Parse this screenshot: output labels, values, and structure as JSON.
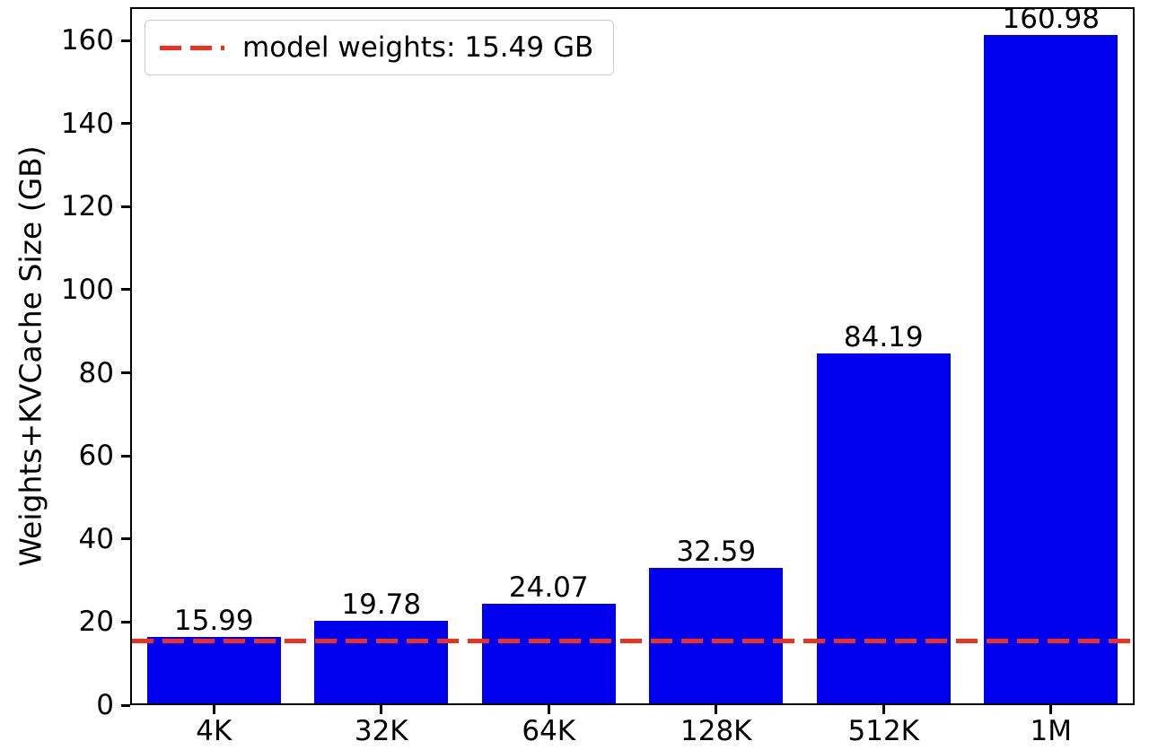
{
  "chart_data": {
    "type": "bar",
    "title": "",
    "categories": [
      "4K",
      "32K",
      "64K",
      "128K",
      "512K",
      "1M"
    ],
    "values": [
      15.99,
      19.78,
      24.07,
      32.59,
      84.19,
      160.98
    ],
    "xlabel": "",
    "ylabel": "Weights+KVCache Size (GB)",
    "ylim": [
      0,
      168
    ],
    "yticks": [
      0,
      20,
      40,
      60,
      80,
      100,
      120,
      140,
      160
    ],
    "bar_color": "#0000ee",
    "grid": false,
    "legend_position": "upper-left",
    "reference_line": {
      "value": 15.49,
      "label": "model weights: 15.49 GB",
      "color": "#f0301f",
      "style": "dashed"
    }
  }
}
